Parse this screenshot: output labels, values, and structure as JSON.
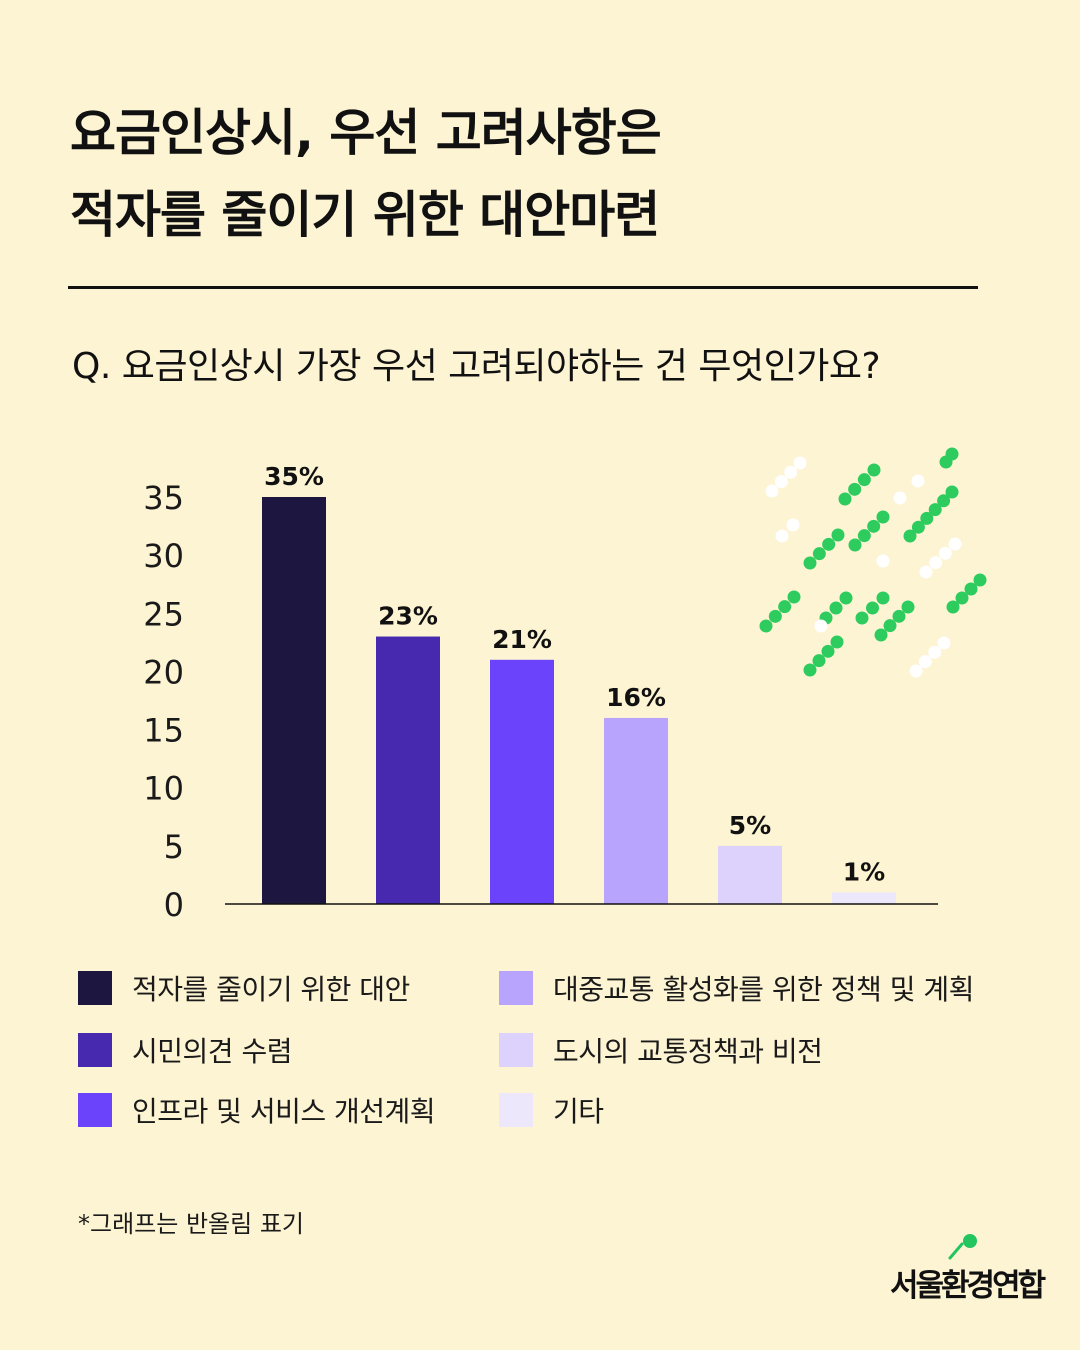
{
  "title": {
    "line1": "요금인상시, 우선 고려사항은",
    "line2": "적자를 줄이기 위한 대안마련"
  },
  "question": "Q. 요금인상시 가장 우선 고려되야하는 건 무엇인가요?",
  "chart_data": {
    "type": "bar",
    "categories": [
      "적자를 줄이기 위한 대안",
      "시민의견 수렴",
      "인프라 및 서비스 개선계획",
      "대중교통 활성화를 위한 정책 및 계획",
      "도시의 교통정책과 비전",
      "기타"
    ],
    "values": [
      35,
      23,
      21,
      16,
      5,
      1
    ],
    "data_labels": [
      "35%",
      "23%",
      "21%",
      "16%",
      "5%",
      "1%"
    ],
    "colors": [
      "#1c1640",
      "#4629ae",
      "#6b43fb",
      "#b8a3fd",
      "#dcd2fc",
      "#ece7fb"
    ],
    "yticks": [
      "0",
      "5",
      "10",
      "15",
      "20",
      "25",
      "30",
      "35"
    ],
    "ylim": [
      0,
      35
    ],
    "grid": false,
    "legend_position": "bottom"
  },
  "legend": [
    {
      "label": "적자를 줄이기 위한 대안",
      "color": "#1c1640"
    },
    {
      "label": "시민의견 수렴",
      "color": "#4629ae"
    },
    {
      "label": "인프라 및 서비스 개선계획",
      "color": "#6b43fb"
    },
    {
      "label": "대중교통 활성화를 위한 정책 및 계획",
      "color": "#b8a3fd"
    },
    {
      "label": "도시의 교통정책과 비전",
      "color": "#dcd2fc"
    },
    {
      "label": "기타",
      "color": "#ece7fb"
    }
  ],
  "footnote": "*그래프는 반올림 표기",
  "logo": {
    "text": "서울환경연합",
    "accent": "#22c55e"
  },
  "decoration": {
    "icon": "dotted-rain-pattern",
    "colors": [
      "#2ecc5e",
      "#ffffff"
    ]
  }
}
